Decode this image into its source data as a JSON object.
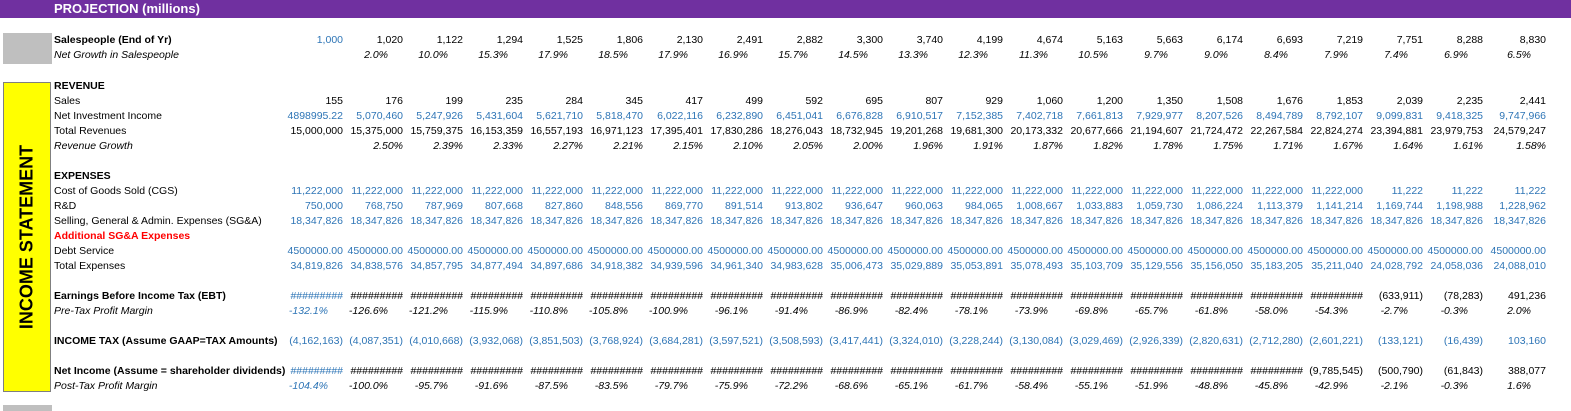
{
  "title": "PROJECTION (millions)",
  "side_label": "INCOME STATEMENT",
  "colors": {
    "header_bg": "#7030a0",
    "side_bg": "#ffff00",
    "input_blue": "#2e75b6",
    "alert_red": "#ff0000"
  },
  "rows": [
    {
      "label": "Salespeople (End of Yr)",
      "style": "bold",
      "offset": false,
      "values": [
        "1,000",
        "1,020",
        "1,122",
        "1,294",
        "1,525",
        "1,806",
        "2,130",
        "2,491",
        "2,882",
        "3,300",
        "3,740",
        "4,199",
        "4,674",
        "5,163",
        "5,663",
        "6,174",
        "6,693",
        "7,219",
        "7,751",
        "8,288",
        "8,830"
      ],
      "blue": [
        0
      ]
    },
    {
      "label": "Net Growth in Salespeople",
      "style": "italic",
      "offset": true,
      "values": [
        "",
        "2.0%",
        "10.0%",
        "15.3%",
        "17.9%",
        "18.5%",
        "17.9%",
        "16.9%",
        "15.7%",
        "14.5%",
        "13.3%",
        "12.3%",
        "11.3%",
        "10.5%",
        "9.7%",
        "9.0%",
        "8.4%",
        "7.9%",
        "7.4%",
        "6.9%",
        "6.5%"
      ]
    },
    {
      "label": "REVENUE",
      "style": "bold",
      "values": []
    },
    {
      "label": "Sales",
      "style": "",
      "values": [
        "155",
        "176",
        "199",
        "235",
        "284",
        "345",
        "417",
        "499",
        "592",
        "695",
        "807",
        "929",
        "1,060",
        "1,200",
        "1,350",
        "1,508",
        "1,676",
        "1,853",
        "2,039",
        "2,235",
        "2,441"
      ]
    },
    {
      "label": "Net Investment Income",
      "style": "",
      "allblue": true,
      "values": [
        "4898995.22",
        "5,070,460",
        "5,247,926",
        "5,431,604",
        "5,621,710",
        "5,818,470",
        "6,022,116",
        "6,232,890",
        "6,451,041",
        "6,676,828",
        "6,910,517",
        "7,152,385",
        "7,402,718",
        "7,661,813",
        "7,929,977",
        "8,207,526",
        "8,494,789",
        "8,792,107",
        "9,099,831",
        "9,418,325",
        "9,747,966"
      ]
    },
    {
      "label": "Total Revenues",
      "style": "",
      "values": [
        "15,000,000",
        "15,375,000",
        "15,759,375",
        "16,153,359",
        "16,557,193",
        "16,971,123",
        "17,395,401",
        "17,830,286",
        "18,276,043",
        "18,732,945",
        "19,201,268",
        "19,681,300",
        "20,173,332",
        "20,677,666",
        "21,194,607",
        "21,724,472",
        "22,267,584",
        "22,824,274",
        "23,394,881",
        "23,979,753",
        "24,579,247"
      ]
    },
    {
      "label": "Revenue Growth",
      "style": "italic",
      "values": [
        "",
        "2.50%",
        "2.39%",
        "2.33%",
        "2.27%",
        "2.21%",
        "2.15%",
        "2.10%",
        "2.05%",
        "2.00%",
        "1.96%",
        "1.91%",
        "1.87%",
        "1.82%",
        "1.78%",
        "1.75%",
        "1.71%",
        "1.67%",
        "1.64%",
        "1.61%",
        "1.58%"
      ]
    },
    {
      "label": "EXPENSES",
      "style": "bold",
      "values": []
    },
    {
      "label": "Cost of Goods Sold (CGS)",
      "style": "",
      "allblue": true,
      "values": [
        "11,222,000",
        "11,222,000",
        "11,222,000",
        "11,222,000",
        "11,222,000",
        "11,222,000",
        "11,222,000",
        "11,222,000",
        "11,222,000",
        "11,222,000",
        "11,222,000",
        "11,222,000",
        "11,222,000",
        "11,222,000",
        "11,222,000",
        "11,222,000",
        "11,222,000",
        "11,222,000",
        "11,222",
        "11,222",
        "11,222"
      ]
    },
    {
      "label": "R&D",
      "style": "",
      "allblue": true,
      "values": [
        "750,000",
        "768,750",
        "787,969",
        "807,668",
        "827,860",
        "848,556",
        "869,770",
        "891,514",
        "913,802",
        "936,647",
        "960,063",
        "984,065",
        "1,008,667",
        "1,033,883",
        "1,059,730",
        "1,086,224",
        "1,113,379",
        "1,141,214",
        "1,169,744",
        "1,198,988",
        "1,228,962"
      ]
    },
    {
      "label": "Selling, General & Admin. Expenses (SG&A)",
      "style": "",
      "allblue": true,
      "values": [
        "18,347,826",
        "18,347,826",
        "18,347,826",
        "18,347,826",
        "18,347,826",
        "18,347,826",
        "18,347,826",
        "18,347,826",
        "18,347,826",
        "18,347,826",
        "18,347,826",
        "18,347,826",
        "18,347,826",
        "18,347,826",
        "18,347,826",
        "18,347,826",
        "18,347,826",
        "18,347,826",
        "18,347,826",
        "18,347,826",
        "18,347,826"
      ]
    },
    {
      "label": "Additional SG&A Expenses",
      "style": "red",
      "values": []
    },
    {
      "label": "Debt Service",
      "style": "",
      "allblue": true,
      "values": [
        "4500000.00",
        "4500000.00",
        "4500000.00",
        "4500000.00",
        "4500000.00",
        "4500000.00",
        "4500000.00",
        "4500000.00",
        "4500000.00",
        "4500000.00",
        "4500000.00",
        "4500000.00",
        "4500000.00",
        "4500000.00",
        "4500000.00",
        "4500000.00",
        "4500000.00",
        "4500000.00",
        "4500000.00",
        "4500000.00",
        "4500000.00"
      ]
    },
    {
      "label": "Total Expenses",
      "style": "",
      "allblue": true,
      "values": [
        "34,819,826",
        "34,838,576",
        "34,857,795",
        "34,877,494",
        "34,897,686",
        "34,918,382",
        "34,939,596",
        "34,961,340",
        "34,983,628",
        "35,006,473",
        "35,029,889",
        "35,053,891",
        "35,078,493",
        "35,103,709",
        "35,129,556",
        "35,156,050",
        "35,183,205",
        "35,211,040",
        "24,028,792",
        "24,058,036",
        "24,088,010"
      ]
    },
    {
      "label": "Earnings Before Income Tax (EBT)",
      "style": "bold",
      "values": [
        "#########",
        "#########",
        "#########",
        "#########",
        "#########",
        "#########",
        "#########",
        "#########",
        "#########",
        "#########",
        "#########",
        "#########",
        "#########",
        "#########",
        "#########",
        "#########",
        "#########",
        "#########",
        "(633,911)",
        "(78,283)",
        "491,236"
      ],
      "blue": [
        0
      ]
    },
    {
      "label": "Pre-Tax Profit Margin",
      "style": "italic",
      "offset": true,
      "values": [
        "-132.1%",
        "-126.6%",
        "-121.2%",
        "-115.9%",
        "-110.8%",
        "-105.8%",
        "-100.9%",
        "-96.1%",
        "-91.4%",
        "-86.9%",
        "-82.4%",
        "-78.1%",
        "-73.9%",
        "-69.8%",
        "-65.7%",
        "-61.8%",
        "-58.0%",
        "-54.3%",
        "-2.7%",
        "-0.3%",
        "2.0%"
      ],
      "blue": [
        0
      ]
    },
    {
      "label": "INCOME TAX (Assume GAAP=TAX Amounts)",
      "style": "bold",
      "allblue": true,
      "values": [
        "(4,162,163)",
        "(4,087,351)",
        "(4,010,668)",
        "(3,932,068)",
        "(3,851,503)",
        "(3,768,924)",
        "(3,684,281)",
        "(3,597,521)",
        "(3,508,593)",
        "(3,417,441)",
        "(3,324,010)",
        "(3,228,244)",
        "(3,130,084)",
        "(3,029,469)",
        "(2,926,339)",
        "(2,820,631)",
        "(2,712,280)",
        "(2,601,221)",
        "(133,121)",
        "(16,439)",
        "103,160"
      ]
    },
    {
      "label": "Net Income (Assume = shareholder dividends)",
      "style": "bold",
      "values": [
        "#########",
        "#########",
        "#########",
        "#########",
        "#########",
        "#########",
        "#########",
        "#########",
        "#########",
        "#########",
        "#########",
        "#########",
        "#########",
        "#########",
        "#########",
        "#########",
        "#########",
        "(9,785,545)",
        "(500,790)",
        "(61,843)",
        "388,077"
      ],
      "blue": [
        0
      ]
    },
    {
      "label": "Post-Tax Profit Margin",
      "style": "italic",
      "offset": true,
      "values": [
        "-104.4%",
        "-100.0%",
        "-95.7%",
        "-91.6%",
        "-87.5%",
        "-83.5%",
        "-79.7%",
        "-75.9%",
        "-72.2%",
        "-68.6%",
        "-65.1%",
        "-61.7%",
        "-58.4%",
        "-55.1%",
        "-51.9%",
        "-48.8%",
        "-45.8%",
        "-42.9%",
        "-2.1%",
        "-0.3%",
        "1.6%"
      ],
      "blue": [
        0
      ]
    }
  ]
}
